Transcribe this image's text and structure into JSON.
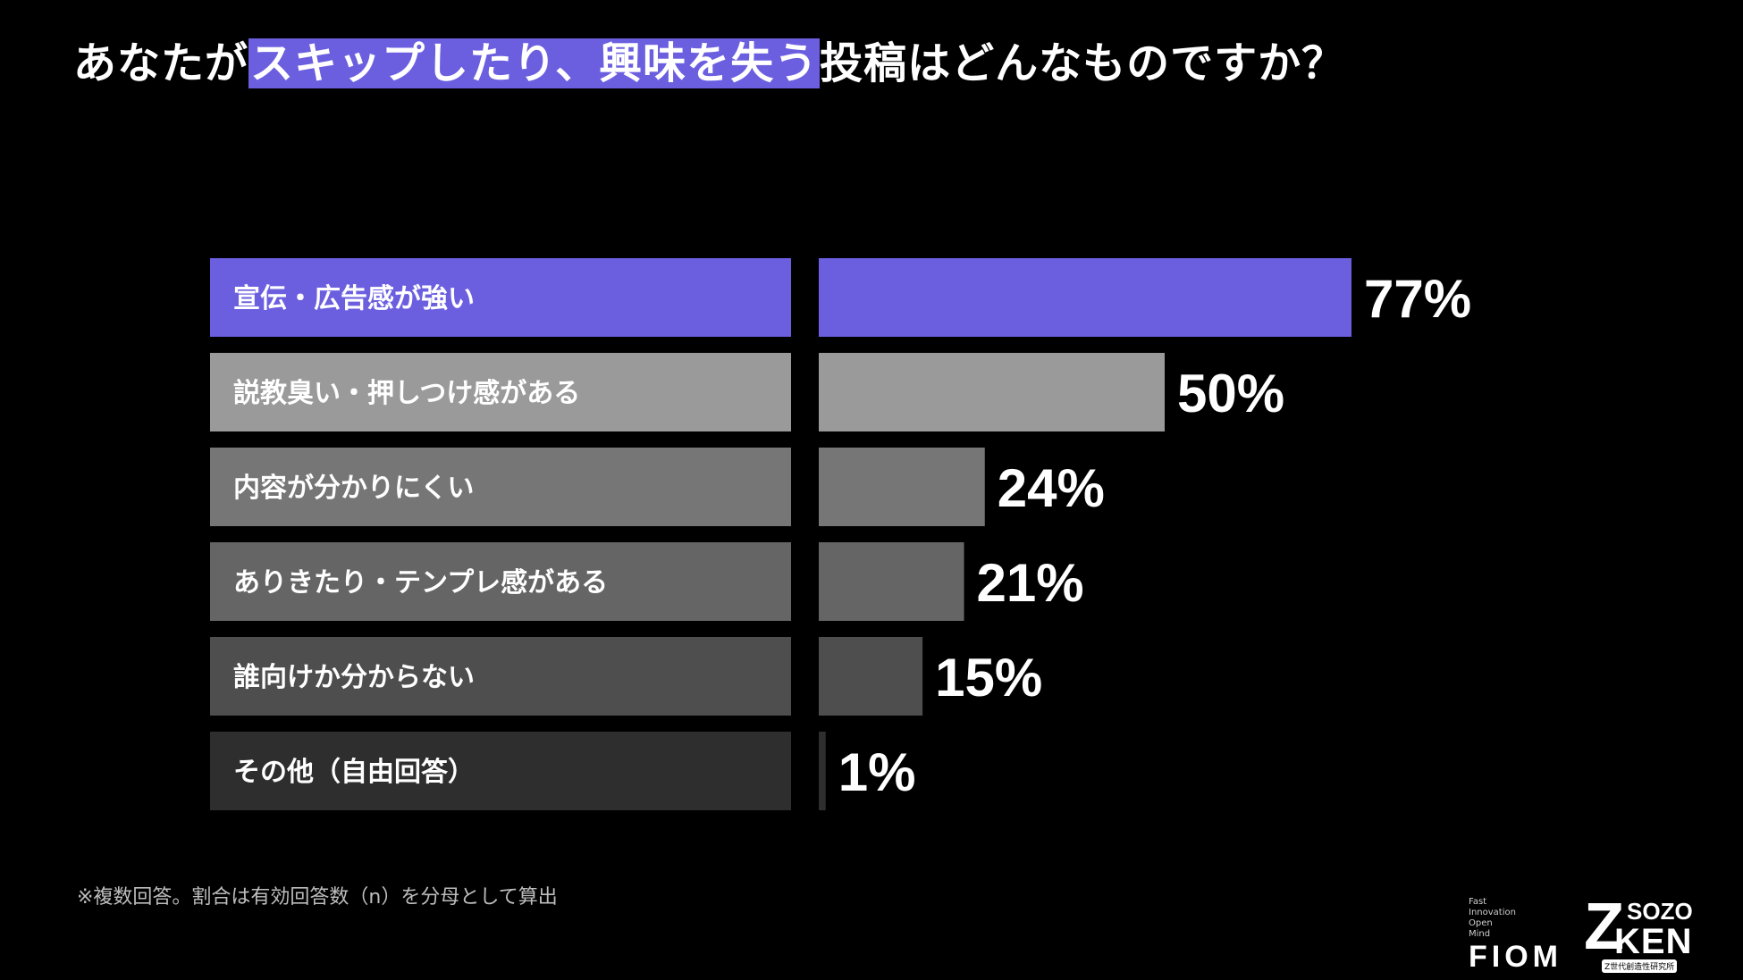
{
  "title": {
    "before": "あなたが",
    "highlight": "スキップしたり、興味を失う",
    "after": "投稿はどんなものですか？"
  },
  "colors": {
    "highlight": "#6B5FE0",
    "background": "#000000",
    "bar_shades": [
      "#6B5FE0",
      "#9a9a9a",
      "#767676",
      "#656565",
      "#4e4e4e",
      "#2e2e2e"
    ]
  },
  "chart_data": {
    "type": "bar",
    "orientation": "horizontal",
    "categories": [
      "宣伝・広告感が強い",
      "説教臭い・押しつけ感がある",
      "内容が分かりにくい",
      "ありきたり・テンプレ感がある",
      "誰向けか分からない",
      "その他（自由回答）"
    ],
    "values": [
      77,
      50,
      24,
      21,
      15,
      1
    ],
    "value_labels": [
      "77%",
      "50%",
      "24%",
      "21%",
      "15%",
      "1%"
    ],
    "unit": "%",
    "xlim": [
      0,
      100
    ],
    "grid": false,
    "legend": "none"
  },
  "footnote": "※複数回答。割合は有効回答数（n）を分母として算出",
  "logos": {
    "fiom_small_lines": [
      "Fast",
      "Innovation",
      "Open",
      "Mind"
    ],
    "fiom": "FIOM",
    "sozo_z": "Z",
    "sozo_top": "SOZO",
    "sozo_ken": "KEN",
    "sozo_sub": "Z世代創造性研究所"
  }
}
